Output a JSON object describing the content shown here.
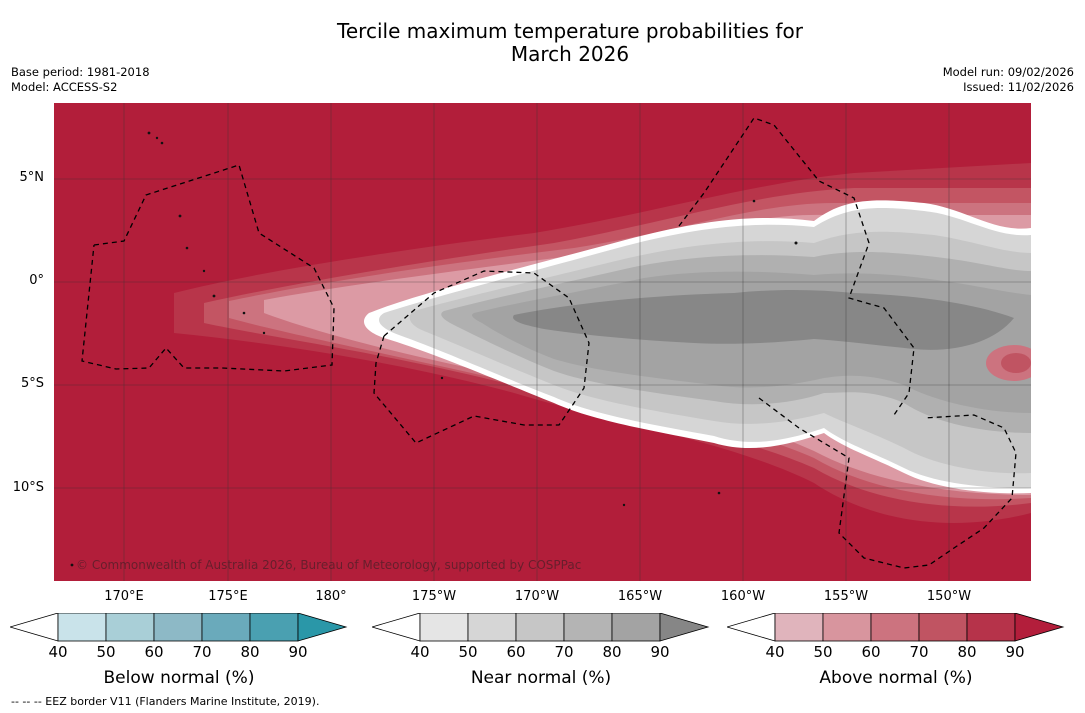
{
  "title_line1": "Tercile maximum temperature probabilities for",
  "title_line2": "March 2026",
  "base_period": "Base period: 1981-2018",
  "model": "Model: ACCESS-S2",
  "model_run": "Model run: 09/02/2026",
  "issued": "Issued: 11/02/2026",
  "copyright": "© Commonwealth of Australia 2026, Bureau of Meteorology, supported by COSPPac",
  "footnote": "--  --  -- EEZ border V11 (Flanders Marine Institute, 2019).",
  "lat_labels": [
    "5°N",
    "0°",
    "5°S",
    "10°S"
  ],
  "lon_labels": [
    "170°E",
    "175°E",
    "180°",
    "175°W",
    "170°W",
    "165°W",
    "160°W",
    "155°W",
    "150°W"
  ],
  "colorbars": {
    "below": {
      "title": "Below normal (%)",
      "ticks": [
        "40",
        "50",
        "60",
        "70",
        "80",
        "90"
      ],
      "colors": [
        "#ffffff",
        "#c9e3ea",
        "#a9cfd7",
        "#8db9c6",
        "#6aaabb",
        "#4aa0b1",
        "#2a97a8"
      ]
    },
    "near": {
      "title": "Near normal (%)",
      "ticks": [
        "40",
        "50",
        "60",
        "70",
        "80",
        "90"
      ],
      "colors": [
        "#ffffff",
        "#e5e5e5",
        "#d6d6d6",
        "#c6c6c6",
        "#b4b4b4",
        "#a3a3a3",
        "#868686"
      ]
    },
    "above": {
      "title": "Above normal (%)",
      "ticks": [
        "40",
        "50",
        "60",
        "70",
        "80",
        "90"
      ],
      "colors": [
        "#ffffff",
        "#e0b4bc",
        "#d8959e",
        "#cc737f",
        "#c05462",
        "#b6334a",
        "#b31e3b"
      ]
    }
  },
  "map_colors": {
    "above90": "#b21e3a",
    "above80": "#b8354a",
    "above70": "#c35563",
    "above60": "#cc737f",
    "above50": "#dc9aa4",
    "near": "#ffffff",
    "near50": "#d6d6d6",
    "near60": "#c6c6c6",
    "near70": "#b0b0b0",
    "near80": "#a3a3a3",
    "near90": "#878787"
  }
}
